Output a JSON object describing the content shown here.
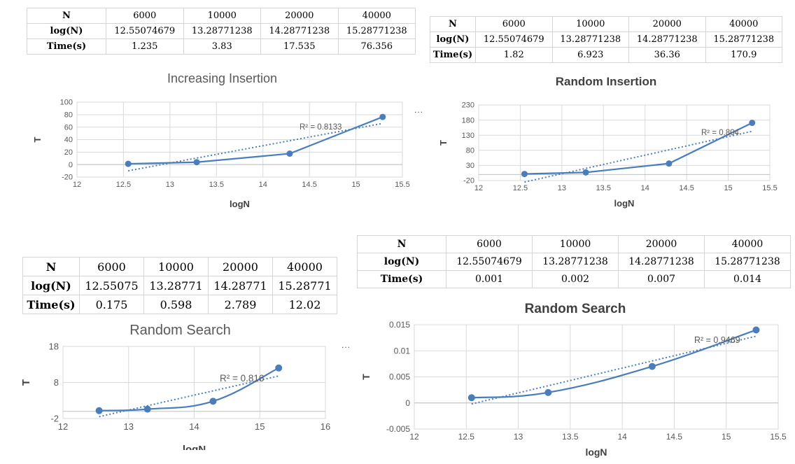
{
  "tables": [
    {
      "header": [
        "N",
        "6000",
        "10000",
        "20000",
        "40000"
      ],
      "logN": [
        "log(N)",
        "12.55074679",
        "13.28771238",
        "14.28771238",
        "15.28771238"
      ],
      "time": [
        "Time(s)",
        "1.235",
        "3.83",
        "17.535",
        "76.356"
      ]
    },
    {
      "header": [
        "N",
        "6000",
        "10000",
        "20000",
        "40000"
      ],
      "logN": [
        "log(N)",
        "12.55074679",
        "13.28771238",
        "14.28771238",
        "15.28771238"
      ],
      "time": [
        "Time(s)",
        "1.82",
        "6.923",
        "36.36",
        "170.9"
      ]
    },
    {
      "header": [
        "N",
        "6000",
        "10000",
        "20000",
        "40000"
      ],
      "logN": [
        "log(N)",
        "12.55075",
        "13.28771",
        "14.28771",
        "15.28771"
      ],
      "time": [
        "Time(s)",
        "0.175",
        "0.598",
        "2.789",
        "12.02"
      ]
    },
    {
      "header": [
        "N",
        "6000",
        "10000",
        "20000",
        "40000"
      ],
      "logN": [
        "log(N)",
        "12.55074679",
        "13.28771238",
        "14.28771238",
        "15.28771238"
      ],
      "time": [
        "Time(s)",
        "0.001",
        "0.002",
        "0.007",
        "0.014"
      ]
    }
  ],
  "ellipsis": "...",
  "chart_data": [
    {
      "type": "line",
      "title": "Increasing Insertion",
      "xlabel": "logN",
      "ylabel": "T",
      "x": [
        12.55074679,
        13.28771238,
        14.28771238,
        15.28771238
      ],
      "y": [
        1.235,
        3.83,
        17.535,
        76.356
      ],
      "xlim": [
        12,
        15.5
      ],
      "xticks": [
        "12",
        "12.5",
        "13",
        "13.5",
        "14",
        "14.5",
        "15",
        "15.5"
      ],
      "ylim": [
        -20,
        100
      ],
      "yticks": [
        "-20",
        "0",
        "20",
        "40",
        "60",
        "80",
        "100"
      ],
      "smooth": false,
      "trendline": "linear",
      "trend_start_y": -10,
      "trend_end_y": 66,
      "r2": "R² = 0.8133"
    },
    {
      "type": "line",
      "title": "Random Insertion",
      "xlabel": "logN",
      "ylabel": "T",
      "x": [
        12.55074679,
        13.28771238,
        14.28771238,
        15.28771238
      ],
      "y": [
        1.82,
        6.923,
        36.36,
        170.9
      ],
      "xlim": [
        12,
        15.5
      ],
      "xticks": [
        "12",
        "12.5",
        "13",
        "13.5",
        "14",
        "14.5",
        "15",
        "15.5"
      ],
      "ylim": [
        -20,
        230
      ],
      "yticks": [
        "-20",
        "30",
        "80",
        "130",
        "180",
        "230"
      ],
      "smooth": false,
      "trendline": "linear",
      "trend_start_y": -25,
      "trend_end_y": 143,
      "r2": "R² = 0.804"
    },
    {
      "type": "line",
      "title": "Random Search",
      "xlabel": "logN",
      "ylabel": "T",
      "x": [
        12.55075,
        13.28771,
        14.28771,
        15.28771
      ],
      "y": [
        0.175,
        0.598,
        2.789,
        12.02
      ],
      "xlim": [
        12,
        16
      ],
      "xticks": [
        "12",
        "13",
        "14",
        "15",
        "16"
      ],
      "ylim": [
        -2,
        18
      ],
      "yticks": [
        "-2",
        "8",
        "18"
      ],
      "smooth": true,
      "trendline": "linear",
      "trend_start_y": -1.5,
      "trend_end_y": 9.8,
      "r2": "R² = 0.816"
    },
    {
      "type": "line",
      "title": "Random Search",
      "xlabel": "logN",
      "ylabel": "T",
      "x": [
        12.55074679,
        13.28771238,
        14.28771238,
        15.28771238
      ],
      "y": [
        0.001,
        0.002,
        0.007,
        0.014
      ],
      "xlim": [
        12,
        15.5
      ],
      "xticks": [
        "12",
        "12.5",
        "13",
        "13.5",
        "14",
        "14.5",
        "15",
        "15.5"
      ],
      "ylim": [
        -0.005,
        0.015
      ],
      "yticks": [
        "-0.005",
        "0",
        "0.005",
        "0.01",
        "0.015"
      ],
      "smooth": true,
      "trendline": "linear",
      "trend_start_y": -0.0002,
      "trend_end_y": 0.0128,
      "r2": "R² = 0.9469"
    }
  ]
}
